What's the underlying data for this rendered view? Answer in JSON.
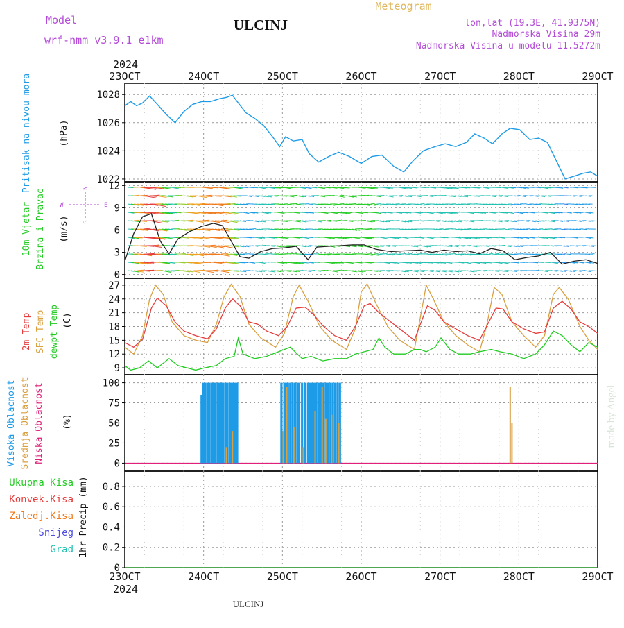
{
  "header": {
    "model_label": "Model",
    "model_name": "wrf-nmm_v3.9.1 e1km",
    "station": "ULCINJ",
    "meteogram": "Meteogram",
    "lonlat": "lon,lat (19.3E, 41.9375N)",
    "elevation": "Nadmorska Visina 29m",
    "model_elevation": "Nadmorska Visina u modelu 11.5272m"
  },
  "footer": {
    "station": "ULCINJ",
    "credit": "made by Angel"
  },
  "x_axis": {
    "year": "2024",
    "ticks": [
      "23OCT",
      "24OCT",
      "25OCT",
      "26OCT",
      "27OCT",
      "28OCT",
      "29OCT"
    ],
    "start_day": 23,
    "end_day": 29
  },
  "colors": {
    "pressure": "#1e9be6",
    "temp2m": "#e63c3c",
    "sfc": "#d9a040",
    "dewpt": "#22cc22",
    "high_cloud": "#1e9be6",
    "mid_cloud": "#d9a040",
    "low_cloud": "#e0207a",
    "total_precip": "#22cc22",
    "conv_precip": "#e63c3c",
    "frozen": "#f07a1a",
    "snow": "#5050e0",
    "grad": "#20c0b0",
    "title_purple": "#b44ad8",
    "title_gold": "#e0b860"
  },
  "panels": {
    "pressure": {
      "label": "Pritisak na nivou mora",
      "unit": "(hPa)",
      "ticks": [
        "1028",
        "1026",
        "1024",
        "1022"
      ]
    },
    "wind": {
      "label_a": "10m Vjetar",
      "label_b": "Brzina i Pravac",
      "unit": "(m/s)",
      "ticks": [
        "12",
        "9",
        "6",
        "3",
        "0"
      ],
      "compass": {
        "n": "N",
        "s": "S",
        "e": "E",
        "w": "W"
      }
    },
    "temp": {
      "label_a": "2m Temp",
      "label_b": "SFC Temp",
      "label_c": "dewpt Temp",
      "unit": "(C)",
      "ticks": [
        "27",
        "24",
        "21",
        "18",
        "15",
        "12",
        "9"
      ]
    },
    "cloud": {
      "label_a": "Visoka Oblacnost",
      "label_b": "Srednja Oblacnost",
      "label_c": "Niska Oblacnost",
      "unit": "(%)",
      "ticks": [
        "100",
        "75",
        "50",
        "25",
        "0"
      ]
    },
    "precip": {
      "legend": [
        "Ukupna Kisa",
        "Konvek.Kisa",
        "Zaledj.Kisa",
        "Snijeg",
        "Grad"
      ],
      "unit": "1hr Precip (mm)",
      "ticks": [
        "0.8",
        "0.6",
        "0.4",
        "0.2",
        "0"
      ]
    }
  },
  "chart_data": [
    {
      "type": "line",
      "name": "pressure",
      "x_unit": "day of Oct 2024",
      "ylim": [
        1021.8,
        1028.8
      ],
      "points": [
        [
          23.0,
          1027.2
        ],
        [
          23.1,
          1027.5
        ],
        [
          23.2,
          1027.2
        ],
        [
          23.3,
          1027.4
        ],
        [
          23.42,
          1027.9
        ],
        [
          23.55,
          1027.3
        ],
        [
          23.7,
          1026.6
        ],
        [
          23.85,
          1026.0
        ],
        [
          24.0,
          1026.8
        ],
        [
          24.15,
          1027.3
        ],
        [
          24.3,
          1027.5
        ],
        [
          24.45,
          1027.5
        ],
        [
          24.6,
          1027.7
        ],
        [
          24.72,
          1027.8
        ],
        [
          24.82,
          1027.95
        ],
        [
          24.92,
          1027.4
        ],
        [
          25.05,
          1026.7
        ],
        [
          25.2,
          1026.3
        ],
        [
          25.35,
          1025.8
        ],
        [
          25.5,
          1025.0
        ],
        [
          25.62,
          1024.3
        ],
        [
          25.72,
          1025.0
        ],
        [
          25.85,
          1024.7
        ],
        [
          26.0,
          1024.8
        ],
        [
          26.12,
          1023.8
        ],
        [
          26.28,
          1023.2
        ],
        [
          26.45,
          1023.6
        ],
        [
          26.62,
          1023.9
        ],
        [
          26.8,
          1023.6
        ],
        [
          27.0,
          1023.1
        ],
        [
          27.18,
          1023.6
        ],
        [
          27.35,
          1023.7
        ],
        [
          27.55,
          1022.9
        ],
        [
          27.72,
          1022.5
        ],
        [
          27.88,
          1023.3
        ],
        [
          28.05,
          1024.0
        ],
        [
          28.25,
          1024.3
        ],
        [
          28.42,
          1024.5
        ],
        [
          28.6,
          1024.3
        ],
        [
          28.78,
          1024.6
        ],
        [
          28.92,
          1025.2
        ],
        [
          29.08,
          1024.9
        ],
        [
          29.22,
          1024.5
        ],
        [
          29.38,
          1025.2
        ],
        [
          29.52,
          1025.6
        ],
        [
          29.68,
          1025.5
        ],
        [
          29.85,
          1024.8
        ],
        [
          30.0,
          1024.9
        ],
        [
          30.15,
          1024.6
        ],
        [
          30.3,
          1023.3
        ],
        [
          30.45,
          1022.0
        ],
        [
          30.6,
          1022.2
        ],
        [
          30.75,
          1022.4
        ],
        [
          30.88,
          1022.5
        ],
        [
          31.0,
          1022.2
        ]
      ]
    },
    {
      "type": "line",
      "name": "10m wind speed",
      "ylim": [
        -0.5,
        12.5
      ],
      "points": [
        [
          23.0,
          1.8
        ],
        [
          23.15,
          5.5
        ],
        [
          23.3,
          7.8
        ],
        [
          23.45,
          8.2
        ],
        [
          23.6,
          4.5
        ],
        [
          23.75,
          2.8
        ],
        [
          23.9,
          4.8
        ],
        [
          24.1,
          5.8
        ],
        [
          24.3,
          6.5
        ],
        [
          24.5,
          6.9
        ],
        [
          24.65,
          6.6
        ],
        [
          24.8,
          4.5
        ],
        [
          24.95,
          2.4
        ],
        [
          25.1,
          2.2
        ],
        [
          25.3,
          3.1
        ],
        [
          25.5,
          3.5
        ],
        [
          25.7,
          3.6
        ],
        [
          25.9,
          3.8
        ],
        [
          26.1,
          2.0
        ],
        [
          26.25,
          3.7
        ],
        [
          26.45,
          3.8
        ],
        [
          26.65,
          3.9
        ],
        [
          26.85,
          4.0
        ],
        [
          27.05,
          4.0
        ],
        [
          27.25,
          3.4
        ],
        [
          27.5,
          3.1
        ],
        [
          27.75,
          3.2
        ],
        [
          28.0,
          3.3
        ],
        [
          28.2,
          3.0
        ],
        [
          28.4,
          3.3
        ],
        [
          28.6,
          3.1
        ],
        [
          28.8,
          3.2
        ],
        [
          29.0,
          2.8
        ],
        [
          29.2,
          3.5
        ],
        [
          29.4,
          3.2
        ],
        [
          29.6,
          2.0
        ],
        [
          29.8,
          2.3
        ],
        [
          30.0,
          2.5
        ],
        [
          30.2,
          3.0
        ],
        [
          30.4,
          1.4
        ],
        [
          30.6,
          1.8
        ],
        [
          30.8,
          2.0
        ],
        [
          31.0,
          1.5
        ]
      ]
    },
    {
      "type": "line",
      "name": "2m temp",
      "ylim": [
        7.5,
        28.5
      ],
      "points": [
        [
          23.0,
          14.5
        ],
        [
          23.15,
          13.5
        ],
        [
          23.3,
          15.2
        ],
        [
          23.45,
          22.0
        ],
        [
          23.55,
          24.2
        ],
        [
          23.7,
          22.5
        ],
        [
          23.85,
          19.0
        ],
        [
          24.0,
          17.0
        ],
        [
          24.2,
          16.0
        ],
        [
          24.4,
          15.3
        ],
        [
          24.55,
          17.5
        ],
        [
          24.7,
          22.0
        ],
        [
          24.82,
          24.0
        ],
        [
          24.95,
          22.5
        ],
        [
          25.1,
          19.0
        ],
        [
          25.25,
          18.5
        ],
        [
          25.4,
          17.0
        ],
        [
          25.6,
          16.0
        ],
        [
          25.75,
          18.0
        ],
        [
          25.9,
          22.0
        ],
        [
          26.05,
          22.2
        ],
        [
          26.2,
          20.5
        ],
        [
          26.35,
          18.2
        ],
        [
          26.55,
          16.0
        ],
        [
          26.75,
          15.0
        ],
        [
          26.9,
          18.0
        ],
        [
          27.05,
          22.5
        ],
        [
          27.15,
          23.0
        ],
        [
          27.3,
          21.0
        ],
        [
          27.5,
          19.0
        ],
        [
          27.7,
          17.0
        ],
        [
          27.9,
          15.0
        ],
        [
          28.0,
          18.5
        ],
        [
          28.12,
          22.5
        ],
        [
          28.25,
          21.5
        ],
        [
          28.4,
          19.0
        ],
        [
          28.6,
          17.5
        ],
        [
          28.8,
          16.0
        ],
        [
          29.0,
          15.0
        ],
        [
          29.12,
          18.0
        ],
        [
          29.28,
          22.0
        ],
        [
          29.4,
          21.8
        ],
        [
          29.55,
          19.0
        ],
        [
          29.75,
          17.5
        ],
        [
          29.95,
          16.5
        ],
        [
          30.1,
          16.8
        ],
        [
          30.25,
          22.0
        ],
        [
          30.4,
          23.5
        ],
        [
          30.55,
          21.8
        ],
        [
          30.7,
          19.0
        ],
        [
          30.85,
          18.0
        ],
        [
          31.0,
          16.5
        ]
      ]
    },
    {
      "type": "line",
      "name": "SFC temp",
      "ylim": [
        7.5,
        28.5
      ],
      "points": [
        [
          23.0,
          13.5
        ],
        [
          23.15,
          12.0
        ],
        [
          23.3,
          16.0
        ],
        [
          23.42,
          24.0
        ],
        [
          23.52,
          27.0
        ],
        [
          23.65,
          25.0
        ],
        [
          23.8,
          19.0
        ],
        [
          24.0,
          16.0
        ],
        [
          24.2,
          15.0
        ],
        [
          24.4,
          14.5
        ],
        [
          24.55,
          18.5
        ],
        [
          24.68,
          24.5
        ],
        [
          24.8,
          27.2
        ],
        [
          24.95,
          24.5
        ],
        [
          25.1,
          18.5
        ],
        [
          25.3,
          15.5
        ],
        [
          25.55,
          13.5
        ],
        [
          25.7,
          16.5
        ],
        [
          25.85,
          24.5
        ],
        [
          25.95,
          27.0
        ],
        [
          26.1,
          23.5
        ],
        [
          26.3,
          18.0
        ],
        [
          26.5,
          15.0
        ],
        [
          26.75,
          13.0
        ],
        [
          26.9,
          17.5
        ],
        [
          27.0,
          25.5
        ],
        [
          27.1,
          27.3
        ],
        [
          27.25,
          23.0
        ],
        [
          27.45,
          18.0
        ],
        [
          27.65,
          15.0
        ],
        [
          27.9,
          13.0
        ],
        [
          28.0,
          20.0
        ],
        [
          28.1,
          27.0
        ],
        [
          28.22,
          24.0
        ],
        [
          28.4,
          19.0
        ],
        [
          28.6,
          16.0
        ],
        [
          28.8,
          14.0
        ],
        [
          29.0,
          12.5
        ],
        [
          29.12,
          18.0
        ],
        [
          29.25,
          26.5
        ],
        [
          29.38,
          25.0
        ],
        [
          29.55,
          19.0
        ],
        [
          29.75,
          16.0
        ],
        [
          29.95,
          13.5
        ],
        [
          30.1,
          16.0
        ],
        [
          30.25,
          25.0
        ],
        [
          30.35,
          26.5
        ],
        [
          30.5,
          24.0
        ],
        [
          30.7,
          18.0
        ],
        [
          30.85,
          15.0
        ],
        [
          31.0,
          13.0
        ]
      ]
    },
    {
      "type": "line",
      "name": "dewpoint",
      "ylim": [
        7.5,
        28.5
      ],
      "points": [
        [
          23.0,
          9.5
        ],
        [
          23.1,
          8.5
        ],
        [
          23.25,
          9.0
        ],
        [
          23.4,
          10.5
        ],
        [
          23.55,
          9.0
        ],
        [
          23.75,
          11.0
        ],
        [
          23.9,
          9.5
        ],
        [
          24.05,
          9.0
        ],
        [
          24.2,
          8.5
        ],
        [
          24.35,
          9.0
        ],
        [
          24.55,
          9.5
        ],
        [
          24.7,
          11.0
        ],
        [
          24.85,
          11.5
        ],
        [
          24.92,
          15.5
        ],
        [
          25.0,
          12.0
        ],
        [
          25.2,
          11.0
        ],
        [
          25.4,
          11.5
        ],
        [
          25.6,
          12.5
        ],
        [
          25.8,
          13.5
        ],
        [
          25.92,
          12.0
        ],
        [
          26.0,
          11.0
        ],
        [
          26.15,
          11.5
        ],
        [
          26.35,
          10.5
        ],
        [
          26.55,
          11.0
        ],
        [
          26.75,
          11.0
        ],
        [
          26.9,
          12.0
        ],
        [
          27.05,
          12.5
        ],
        [
          27.2,
          13.0
        ],
        [
          27.3,
          15.5
        ],
        [
          27.4,
          13.5
        ],
        [
          27.55,
          12.0
        ],
        [
          27.75,
          12.0
        ],
        [
          27.9,
          13.0
        ],
        [
          28.0,
          13.0
        ],
        [
          28.1,
          12.5
        ],
        [
          28.25,
          13.5
        ],
        [
          28.35,
          15.5
        ],
        [
          28.5,
          13.0
        ],
        [
          28.65,
          12.0
        ],
        [
          28.85,
          12.0
        ],
        [
          29.0,
          12.5
        ],
        [
          29.2,
          13.0
        ],
        [
          29.35,
          12.5
        ],
        [
          29.55,
          12.0
        ],
        [
          29.75,
          11.0
        ],
        [
          29.95,
          12.0
        ],
        [
          30.1,
          14.0
        ],
        [
          30.25,
          17.0
        ],
        [
          30.4,
          16.0
        ],
        [
          30.55,
          14.0
        ],
        [
          30.7,
          12.5
        ],
        [
          30.85,
          14.5
        ],
        [
          31.0,
          13.5
        ]
      ]
    },
    {
      "type": "bar",
      "name": "high cloud (%)",
      "x": [
        24.3,
        24.33,
        24.36,
        24.4,
        24.43,
        24.47,
        24.5,
        24.53,
        24.57,
        24.6,
        24.63,
        24.66,
        24.7,
        24.73,
        24.77,
        24.8,
        24.83,
        24.87,
        24.9,
        25.65,
        25.7,
        25.73,
        25.76,
        25.8,
        25.84,
        25.88,
        25.92,
        25.95,
        26.0,
        26.05,
        26.1,
        26.13,
        26.16,
        26.2,
        26.24,
        26.28,
        26.32,
        26.36,
        26.4,
        26.44,
        26.48,
        26.52,
        26.56,
        26.6,
        26.64
      ],
      "values": [
        85,
        100,
        100,
        100,
        100,
        100,
        100,
        100,
        100,
        100,
        100,
        100,
        100,
        100,
        100,
        100,
        100,
        100,
        100,
        100,
        100,
        100,
        100,
        100,
        100,
        100,
        100,
        100,
        100,
        100,
        100,
        100,
        100,
        100,
        100,
        100,
        100,
        100,
        100,
        100,
        100,
        100,
        100,
        100,
        100
      ]
    },
    {
      "type": "bar",
      "name": "mid cloud (%)",
      "x": [
        24.72,
        24.82,
        25.68,
        25.74,
        25.86,
        26.02,
        26.22,
        26.34,
        26.4,
        26.5,
        26.62,
        29.52,
        29.55
      ],
      "values": [
        20,
        40,
        40,
        95,
        45,
        20,
        65,
        95,
        55,
        60,
        50,
        95,
        50
      ]
    },
    {
      "type": "area",
      "name": "1hr precip (mm)",
      "ylim": [
        0,
        0.95
      ],
      "values_note": "no visible precipitation"
    }
  ]
}
